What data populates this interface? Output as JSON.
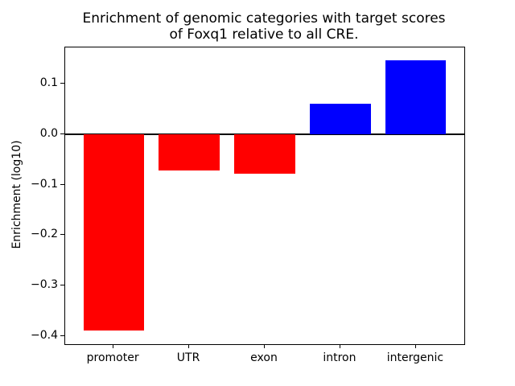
{
  "figure": {
    "background": "#ffffff",
    "text_color": "#000000"
  },
  "chart_data": {
    "type": "bar",
    "title": "Enrichment of genomic categories with target scores\nof Foxq1 relative to all CRE.",
    "xlabel": "",
    "ylabel": "Enrichment (log10)",
    "categories": [
      "promoter",
      "UTR",
      "exon",
      "intron",
      "intergenic"
    ],
    "values": [
      -0.39,
      -0.072,
      -0.079,
      0.061,
      0.146
    ],
    "bar_colors": [
      "#ff0000",
      "#ff0000",
      "#ff0000",
      "#0000ff",
      "#0000ff"
    ],
    "negative_color": "#ff0000",
    "positive_color": "#0000ff",
    "ylim": [
      -0.4168,
      0.1728
    ],
    "y_ticks": [
      0.1,
      0.0,
      -0.1,
      -0.2,
      -0.3,
      -0.4
    ],
    "y_tick_labels": [
      "0.1",
      "0.0",
      "−0.1",
      "−0.2",
      "−0.3",
      "−0.4"
    ],
    "zero_line": true,
    "grid": false,
    "bar_width_fraction": 0.8
  }
}
